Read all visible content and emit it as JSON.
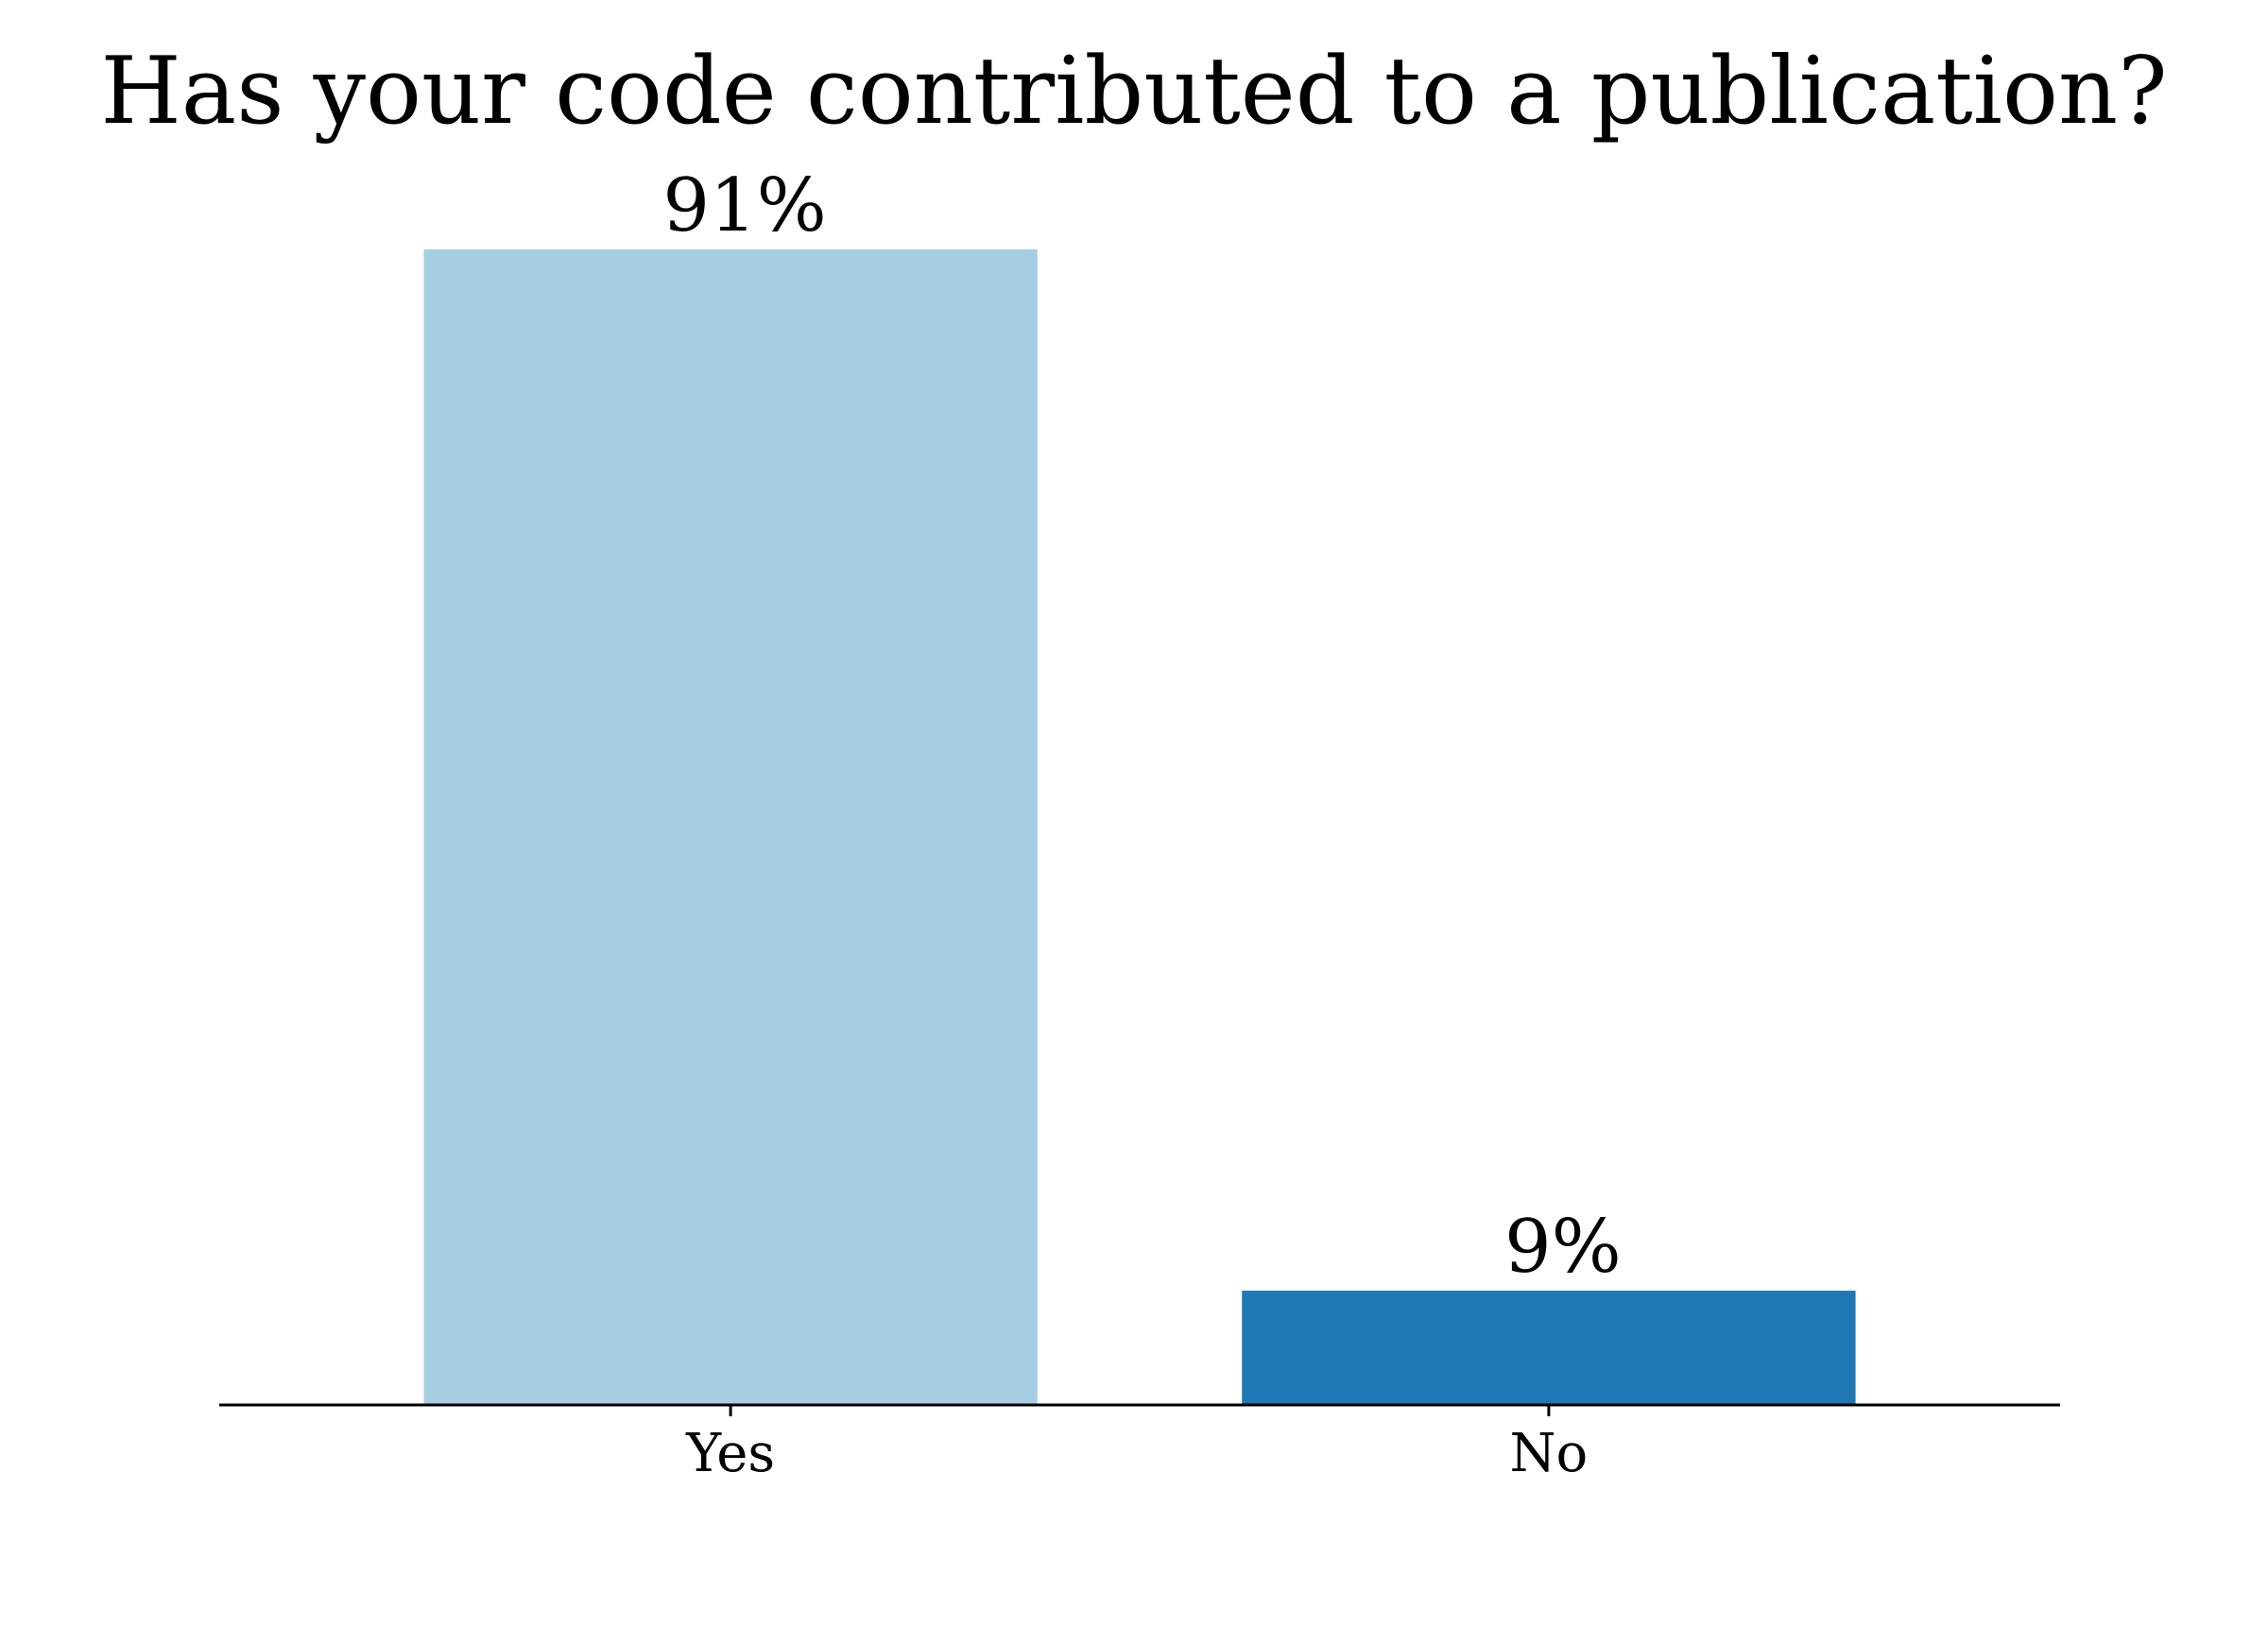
{
  "chart_data": {
    "type": "bar",
    "title": "Has your code contributed to a publication?",
    "xlabel": "",
    "ylabel": "",
    "categories": [
      "Yes",
      "No"
    ],
    "values": [
      91,
      9
    ],
    "value_labels": [
      "91%",
      "9%"
    ],
    "bar_colors": [
      "#a6cee3",
      "#1f78b4"
    ],
    "ylim": [
      0,
      100
    ],
    "grid": false,
    "legend": "none",
    "y_axis_visible": false
  }
}
